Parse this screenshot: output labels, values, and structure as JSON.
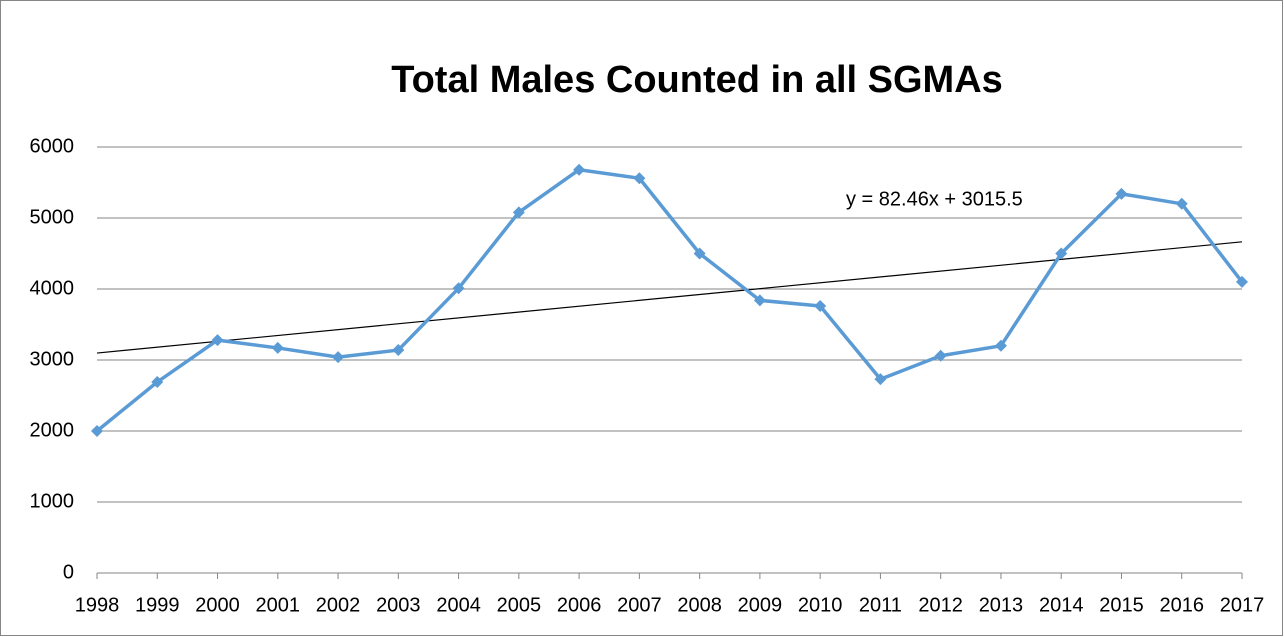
{
  "chart_data": {
    "type": "line",
    "title": "Total Males Counted in all SGMAs",
    "categories": [
      "1998",
      "1999",
      "2000",
      "2001",
      "2002",
      "2003",
      "2004",
      "2005",
      "2006",
      "2007",
      "2008",
      "2009",
      "2010",
      "2011",
      "2012",
      "2013",
      "2014",
      "2015",
      "2016",
      "2017"
    ],
    "values": [
      2000,
      2690,
      3280,
      3170,
      3040,
      3140,
      4010,
      5080,
      5680,
      5560,
      4500,
      3840,
      3760,
      2730,
      3060,
      3200,
      4500,
      5340,
      5200,
      4100
    ],
    "color": "#5b9bd5",
    "ylim": [
      0,
      6000
    ],
    "yticks": [
      0,
      1000,
      2000,
      3000,
      4000,
      5000,
      6000
    ],
    "grid": true,
    "trendline": {
      "label": "y = 82.46x + 3015.5",
      "slope": 82.46,
      "intercept": 3015.5,
      "color": "#000000"
    }
  }
}
